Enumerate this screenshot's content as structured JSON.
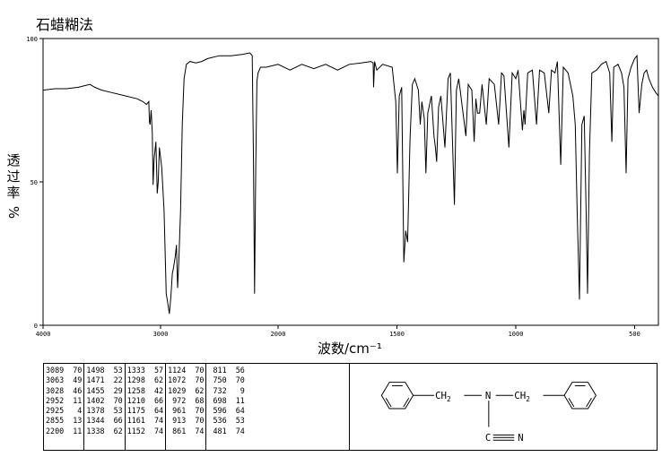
{
  "method_label": "石蜡糊法",
  "chart_data": {
    "type": "line",
    "title": "",
    "ylabel_chars": [
      "透",
      "过",
      "率"
    ],
    "ylabel_unit": "%",
    "xlabel": "波数/cm⁻¹",
    "xlim": [
      4000,
      400
    ],
    "ylim": [
      0,
      100
    ],
    "x_ticks": [
      4000,
      3000,
      2000,
      1500,
      1000,
      500
    ],
    "y_ticks": [
      0,
      50,
      100
    ],
    "series": [
      {
        "points": [
          [
            4000,
            82
          ],
          [
            3900,
            82.5
          ],
          [
            3800,
            82.5
          ],
          [
            3700,
            83
          ],
          [
            3600,
            84
          ],
          [
            3560,
            83
          ],
          [
            3500,
            82
          ],
          [
            3400,
            81
          ],
          [
            3300,
            80
          ],
          [
            3200,
            79
          ],
          [
            3150,
            78
          ],
          [
            3120,
            77
          ],
          [
            3100,
            78
          ],
          [
            3095,
            71
          ],
          [
            3089,
            70
          ],
          [
            3080,
            75
          ],
          [
            3070,
            67
          ],
          [
            3063,
            49
          ],
          [
            3055,
            58
          ],
          [
            3040,
            64
          ],
          [
            3028,
            46
          ],
          [
            3020,
            50
          ],
          [
            3010,
            62
          ],
          [
            2990,
            55
          ],
          [
            2970,
            40
          ],
          [
            2952,
            11
          ],
          [
            2940,
            8
          ],
          [
            2925,
            4
          ],
          [
            2912,
            10
          ],
          [
            2900,
            18
          ],
          [
            2890,
            20
          ],
          [
            2875,
            24
          ],
          [
            2865,
            28
          ],
          [
            2855,
            13
          ],
          [
            2845,
            22
          ],
          [
            2830,
            40
          ],
          [
            2815,
            70
          ],
          [
            2800,
            86
          ],
          [
            2780,
            91
          ],
          [
            2750,
            92
          ],
          [
            2700,
            91.5
          ],
          [
            2650,
            92
          ],
          [
            2600,
            93
          ],
          [
            2500,
            94
          ],
          [
            2400,
            94
          ],
          [
            2300,
            94.5
          ],
          [
            2240,
            95
          ],
          [
            2220,
            94
          ],
          [
            2210,
            60
          ],
          [
            2200,
            11
          ],
          [
            2190,
            55
          ],
          [
            2180,
            85
          ],
          [
            2170,
            88
          ],
          [
            2150,
            90
          ],
          [
            2100,
            90
          ],
          [
            2000,
            91
          ],
          [
            1950,
            89
          ],
          [
            1900,
            91
          ],
          [
            1850,
            89.5
          ],
          [
            1800,
            91
          ],
          [
            1750,
            89
          ],
          [
            1700,
            91
          ],
          [
            1650,
            91.5
          ],
          [
            1610,
            92
          ],
          [
            1600,
            91.5
          ],
          [
            1598,
            83
          ],
          [
            1594,
            92
          ],
          [
            1585,
            89
          ],
          [
            1560,
            91
          ],
          [
            1520,
            90
          ],
          [
            1505,
            78
          ],
          [
            1498,
            53
          ],
          [
            1490,
            80
          ],
          [
            1480,
            83
          ],
          [
            1471,
            22
          ],
          [
            1463,
            33
          ],
          [
            1455,
            29
          ],
          [
            1445,
            65
          ],
          [
            1435,
            84
          ],
          [
            1425,
            86
          ],
          [
            1410,
            82
          ],
          [
            1402,
            70
          ],
          [
            1395,
            78
          ],
          [
            1385,
            72
          ],
          [
            1378,
            53
          ],
          [
            1370,
            74
          ],
          [
            1355,
            80
          ],
          [
            1344,
            66
          ],
          [
            1338,
            62
          ],
          [
            1333,
            57
          ],
          [
            1325,
            76
          ],
          [
            1315,
            80
          ],
          [
            1298,
            62
          ],
          [
            1285,
            86
          ],
          [
            1275,
            88
          ],
          [
            1258,
            42
          ],
          [
            1250,
            82
          ],
          [
            1240,
            86
          ],
          [
            1210,
            66
          ],
          [
            1200,
            84
          ],
          [
            1185,
            82
          ],
          [
            1175,
            64
          ],
          [
            1168,
            79
          ],
          [
            1161,
            74
          ],
          [
            1152,
            74
          ],
          [
            1142,
            84
          ],
          [
            1124,
            70
          ],
          [
            1112,
            86
          ],
          [
            1090,
            84
          ],
          [
            1072,
            70
          ],
          [
            1060,
            88
          ],
          [
            1050,
            87
          ],
          [
            1029,
            62
          ],
          [
            1015,
            88
          ],
          [
            1000,
            86
          ],
          [
            990,
            89
          ],
          [
            972,
            68
          ],
          [
            966,
            75
          ],
          [
            961,
            70
          ],
          [
            950,
            88
          ],
          [
            930,
            89
          ],
          [
            913,
            70
          ],
          [
            900,
            89
          ],
          [
            880,
            88
          ],
          [
            861,
            74
          ],
          [
            850,
            89
          ],
          [
            835,
            88
          ],
          [
            825,
            92
          ],
          [
            811,
            56
          ],
          [
            800,
            90
          ],
          [
            780,
            88
          ],
          [
            760,
            80
          ],
          [
            750,
            70
          ],
          [
            742,
            40
          ],
          [
            732,
            9
          ],
          [
            722,
            70
          ],
          [
            712,
            73
          ],
          [
            704,
            40
          ],
          [
            698,
            11
          ],
          [
            690,
            60
          ],
          [
            680,
            88
          ],
          [
            660,
            89
          ],
          [
            640,
            91
          ],
          [
            620,
            92
          ],
          [
            605,
            88
          ],
          [
            596,
            64
          ],
          [
            588,
            90
          ],
          [
            570,
            91
          ],
          [
            555,
            88
          ],
          [
            545,
            83
          ],
          [
            536,
            53
          ],
          [
            528,
            86
          ],
          [
            515,
            90
          ],
          [
            500,
            93
          ],
          [
            490,
            94
          ],
          [
            481,
            74
          ],
          [
            470,
            84
          ],
          [
            460,
            88
          ],
          [
            450,
            89
          ],
          [
            440,
            86
          ],
          [
            425,
            83
          ],
          [
            410,
            81
          ],
          [
            400,
            80
          ]
        ]
      }
    ],
    "peak_table": [
      [
        [
          3089,
          70
        ],
        [
          3063,
          49
        ],
        [
          3028,
          46
        ],
        [
          2952,
          11
        ],
        [
          2925,
          4
        ],
        [
          2855,
          13
        ],
        [
          2200,
          11
        ]
      ],
      [
        [
          1498,
          53
        ],
        [
          1471,
          22
        ],
        [
          1455,
          29
        ],
        [
          1402,
          70
        ],
        [
          1378,
          53
        ],
        [
          1344,
          66
        ],
        [
          1338,
          62
        ]
      ],
      [
        [
          1333,
          57
        ],
        [
          1298,
          62
        ],
        [
          1258,
          42
        ],
        [
          1210,
          66
        ],
        [
          1175,
          64
        ],
        [
          1161,
          74
        ],
        [
          1152,
          74
        ]
      ],
      [
        [
          1124,
          70
        ],
        [
          1072,
          70
        ],
        [
          1029,
          62
        ],
        [
          972,
          68
        ],
        [
          961,
          70
        ],
        [
          913,
          70
        ],
        [
          861,
          74
        ]
      ],
      [
        [
          811,
          56
        ],
        [
          750,
          70
        ],
        [
          732,
          9
        ],
        [
          698,
          11
        ],
        [
          596,
          64
        ],
        [
          536,
          53
        ],
        [
          481,
          74
        ]
      ]
    ]
  },
  "structure": {
    "left_group": "CH",
    "right_group": "CH",
    "subscript": "2",
    "nitrogen": "N",
    "nitrile_n": "N",
    "nitrile_c": "C"
  }
}
